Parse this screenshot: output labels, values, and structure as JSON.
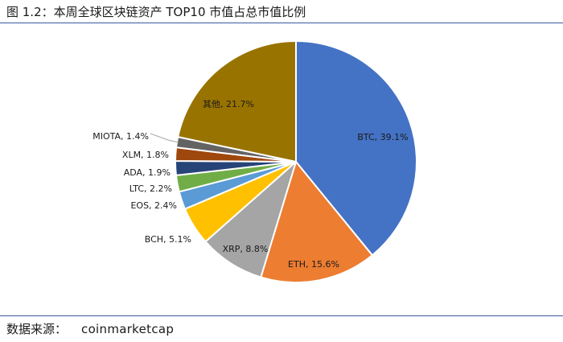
{
  "caption": "图 1.2：本周全球区块链资产 TOP10 市值占总市值比例",
  "source": {
    "label": "数据来源：",
    "value": "coinmarketcap"
  },
  "chart_data": {
    "type": "pie",
    "title": "",
    "labels": [
      "BTC",
      "ETH",
      "XRP",
      "BCH",
      "EOS",
      "LTC",
      "ADA",
      "XLM",
      "MIOTA",
      "其他"
    ],
    "values": [
      39.1,
      15.6,
      8.8,
      5.1,
      2.4,
      2.2,
      1.9,
      1.8,
      1.4,
      21.7
    ],
    "data_labels": [
      "BTC, 39.1%",
      "ETH, 15.6%",
      "XRP, 8.8%",
      "BCH, 5.1%",
      "EOS, 2.4%",
      "LTC, 2.2%",
      "ADA, 1.9%",
      "XLM, 1.8%",
      "MIOTA, 1.4%",
      "其他, 21.7%"
    ],
    "colors": [
      "#4472C4",
      "#ED7D31",
      "#A5A5A5",
      "#FFC000",
      "#5B9BD5",
      "#70AD47",
      "#264478",
      "#9E480E",
      "#636363",
      "#997300"
    ],
    "start_angle": "12 o'clock",
    "direction": "clockwise",
    "legend": "none"
  }
}
